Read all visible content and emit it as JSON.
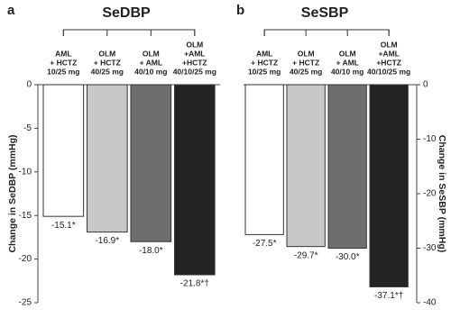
{
  "chart_data": [
    {
      "type": "bar",
      "panel": "a",
      "title": "SeDBP",
      "categories": [
        [
          "AML",
          "+ HCTZ",
          "10/25 mg"
        ],
        [
          "OLM",
          "+ HCTZ",
          "40/25 mg"
        ],
        [
          "OLM",
          "+ AML",
          "40/10 mg"
        ],
        [
          "OLM",
          "+AML",
          "+HCTZ",
          "40/10/25 mg"
        ]
      ],
      "values": [
        -15.1,
        -16.9,
        -18.0,
        -21.8
      ],
      "value_labels": [
        "-15.1*",
        "-16.9*",
        "-18.0*",
        "-21.8*†"
      ],
      "colors": [
        "#ffffff",
        "#c8c8c8",
        "#6e6e6e",
        "#232323"
      ],
      "ylabel": "Change in SeDBP (mmHg)",
      "yaxis_position": "left",
      "ylim": [
        -25,
        0
      ],
      "yticks": [
        0,
        -5,
        -10,
        -15,
        -20,
        -25
      ]
    },
    {
      "type": "bar",
      "panel": "b",
      "title": "SeSBP",
      "categories": [
        [
          "AML",
          "+ HCTZ",
          "10/25 mg"
        ],
        [
          "OLM",
          "+ HCTZ",
          "40/25 mg"
        ],
        [
          "OLM",
          "+ AML",
          "40/10 mg"
        ],
        [
          "OLM",
          "+AML",
          "+HCTZ",
          "40/10/25 mg"
        ]
      ],
      "values": [
        -27.5,
        -29.7,
        -30.0,
        -37.1
      ],
      "value_labels": [
        "-27.5*",
        "-29.7*",
        "-30.0*",
        "-37.1*†"
      ],
      "colors": [
        "#ffffff",
        "#c8c8c8",
        "#6e6e6e",
        "#232323"
      ],
      "ylabel": "Change in SeSBP (mmHg)",
      "yaxis_position": "right",
      "ylim": [
        -40,
        0
      ],
      "yticks": [
        0,
        -10,
        -20,
        -30,
        -40
      ]
    }
  ]
}
